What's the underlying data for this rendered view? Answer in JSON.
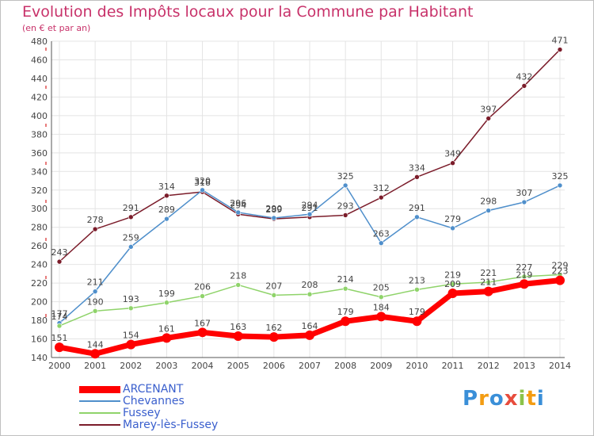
{
  "header": {
    "title": "Evolution des Impôts locaux pour la Commune par Habitant",
    "subtitle": "(en € et par an)"
  },
  "logo": {
    "text": "Proxiti",
    "colors": [
      "#3a8fd8",
      "#f39c12",
      "#3a8fd8",
      "#e74c3c",
      "#8bc34a",
      "#f39c12",
      "#3a8fd8"
    ]
  },
  "chart_data": {
    "type": "line",
    "title": "Evolution des Impôts locaux pour la Commune par Habitant",
    "subtitle": "(en € et par an)",
    "x": [
      "2000",
      "2001",
      "2002",
      "2003",
      "2004",
      "2005",
      "2006",
      "2007",
      "2008",
      "2009",
      "2010",
      "2011",
      "2012",
      "2013",
      "2014"
    ],
    "ylim": [
      140,
      480
    ],
    "yticks": [
      "140",
      "160",
      "180",
      "200",
      "220",
      "240",
      "260",
      "280",
      "300",
      "320",
      "340",
      "360",
      "380",
      "400",
      "420",
      "440",
      "460",
      "480"
    ],
    "grid": true,
    "legend_position": "bottom-left",
    "series": [
      {
        "name": "Marey-lès-Fussey",
        "color": "#7b1c2a",
        "values": [
          243,
          278,
          291,
          314,
          318,
          294,
          289,
          291,
          293,
          312,
          334,
          349,
          397,
          432,
          471
        ],
        "labels": [
          "243",
          "278",
          "291",
          "314",
          "318",
          "294",
          "289",
          "291",
          "293",
          "312",
          "334",
          "349",
          "397",
          "432",
          "471"
        ]
      },
      {
        "name": "Chevannes",
        "color": "#4f8fcb",
        "values": [
          177,
          211,
          259,
          289,
          320,
          296,
          290,
          294,
          325,
          263,
          291,
          279,
          298,
          307,
          325
        ],
        "labels": [
          "177",
          "211",
          "259",
          "289",
          "320",
          "296",
          "290",
          "294",
          "325",
          "263",
          "291",
          "279",
          "298",
          "307",
          "325"
        ]
      },
      {
        "name": "Fussey",
        "color": "#8fd36a",
        "values": [
          174,
          190,
          193,
          199,
          206,
          218,
          207,
          208,
          214,
          205,
          213,
          219,
          221,
          227,
          229
        ],
        "labels": [
          "174",
          "190",
          "193",
          "199",
          "206",
          "218",
          "207",
          "208",
          "214",
          "205",
          "213",
          "219",
          "221",
          "227",
          "229"
        ]
      },
      {
        "name": "ARCENANT",
        "color": "#ff0000",
        "values": [
          151,
          144,
          154,
          161,
          167,
          163,
          162,
          164,
          179,
          184,
          179,
          209,
          211,
          219,
          223
        ],
        "labels": [
          "151",
          "144",
          "154",
          "161",
          "167",
          "163",
          "162",
          "164",
          "179",
          "184",
          "179",
          "209",
          "211",
          "219",
          "223"
        ]
      }
    ]
  },
  "legend": {
    "items": [
      {
        "name": "ARCENANT",
        "color": "#ff0000",
        "thick": true
      },
      {
        "name": "Chevannes",
        "color": "#4f8fcb",
        "thick": false
      },
      {
        "name": "Fussey",
        "color": "#8fd36a",
        "thick": false
      },
      {
        "name": "Marey-lès-Fussey",
        "color": "#7b1c2a",
        "thick": false
      }
    ]
  }
}
